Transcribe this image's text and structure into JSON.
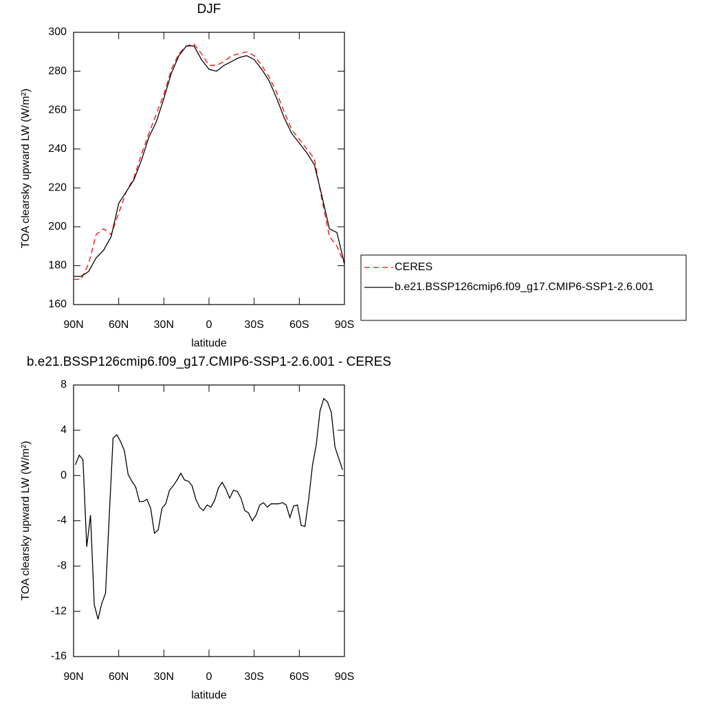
{
  "chart_data": [
    {
      "type": "line",
      "title": "DJF",
      "xlabel": "latitude",
      "ylabel": "TOA clearsky upward LW (W/m²)",
      "x": [
        90,
        85,
        80,
        75,
        70,
        65,
        60,
        55,
        50,
        45,
        40,
        35,
        30,
        25,
        20,
        15,
        10,
        5,
        0,
        -5,
        -10,
        -15,
        -20,
        -25,
        -30,
        -35,
        -40,
        -45,
        -50,
        -55,
        -60,
        -65,
        -70,
        -75,
        -80,
        -85,
        -90
      ],
      "series": [
        {
          "name": "CERES",
          "color": "#ff0000",
          "dash": "dashed",
          "values": [
            173,
            173,
            181,
            196,
            199,
            196,
            207,
            218,
            225,
            237,
            248,
            258,
            268,
            281,
            289,
            293,
            294,
            289,
            283,
            283,
            285,
            288,
            289,
            290,
            288,
            283,
            277,
            269,
            259,
            250,
            245,
            240,
            235,
            214,
            195,
            190,
            181
          ]
        },
        {
          "name": "b.e21.BSSP126cmip6.f09_g17.CMIP6-SSP1-2.6.001",
          "color": "#000000",
          "dash": "solid",
          "values": [
            174.5,
            174.5,
            177,
            184,
            188,
            195,
            212,
            218,
            224,
            234,
            246,
            254,
            266,
            279,
            288,
            293,
            293,
            286,
            281,
            280,
            283,
            285,
            287,
            288,
            286,
            281,
            275,
            266,
            256,
            248,
            243,
            238,
            232,
            216,
            199,
            197,
            181
          ]
        }
      ],
      "xlim": [
        90,
        -90
      ],
      "xticks": [
        {
          "value": 90,
          "label": "90N"
        },
        {
          "value": 60,
          "label": "60N"
        },
        {
          "value": 30,
          "label": "30N"
        },
        0,
        {
          "value": -30,
          "label": "30S"
        },
        {
          "value": -60,
          "label": "60S"
        },
        {
          "value": -90,
          "label": "90S"
        }
      ],
      "ylim": [
        160,
        300
      ],
      "yticks": [
        160,
        180,
        200,
        220,
        240,
        260,
        280,
        300
      ],
      "legend": "right"
    },
    {
      "type": "line",
      "title": "b.e21.BSSP126cmip6.f09_g17.CMIP6-SSP1-2.6.001 - CERES",
      "xlabel": "latitude",
      "ylabel": "TOA clearsky upward LW (W/m²)",
      "x": [
        88.75,
        86.25,
        83.75,
        81.25,
        78.75,
        76.25,
        73.75,
        71.25,
        68.75,
        66.25,
        63.75,
        61.25,
        58.75,
        56.25,
        53.75,
        51.25,
        48.75,
        46.25,
        43.75,
        41.25,
        38.75,
        36.25,
        33.75,
        31.25,
        28.75,
        26.25,
        23.75,
        21.25,
        18.75,
        16.25,
        13.75,
        11.25,
        8.75,
        6.25,
        3.75,
        1.25,
        -1.25,
        -3.75,
        -6.25,
        -8.75,
        -11.25,
        -13.75,
        -16.25,
        -18.75,
        -21.25,
        -23.75,
        -26.25,
        -28.75,
        -31.25,
        -33.75,
        -36.25,
        -38.75,
        -41.25,
        -43.75,
        -46.25,
        -48.75,
        -51.25,
        -53.75,
        -56.25,
        -58.75,
        -61.25,
        -63.75,
        -66.25,
        -68.75,
        -71.25,
        -73.75,
        -76.25,
        -78.75,
        -81.25,
        -83.75,
        -86.25,
        -88.75
      ],
      "color": "#000000",
      "values": [
        0.95,
        1.8,
        1.4,
        -6.3,
        -3.5,
        -11.4,
        -12.7,
        -11.3,
        -10.4,
        -3.5,
        3.3,
        3.6,
        3.0,
        2.2,
        0.1,
        -0.5,
        -1,
        -2.3,
        -2.3,
        -2.1,
        -2.9,
        -5.1,
        -4.8,
        -2.9,
        -2.5,
        -1.3,
        -0.9,
        -0.4,
        0.2,
        -0.4,
        -0.5,
        -0.9,
        -2.1,
        -2.8,
        -3.1,
        -2.6,
        -2.8,
        -2.2,
        -1.1,
        -0.6,
        -1.2,
        -2.0,
        -1.3,
        -1.4,
        -2.0,
        -3.1,
        -3.3,
        -4.0,
        -3.5,
        -2.6,
        -2.4,
        -2.8,
        -2.5,
        -2.5,
        -2.5,
        -2.4,
        -2.6,
        -3.7,
        -2.7,
        -2.6,
        -4.4,
        -4.5,
        -2.1,
        0.9,
        2.7,
        5.7,
        6.8,
        6.5,
        5.6,
        2.5,
        1.5,
        0.5
      ],
      "xlim": [
        90,
        -90
      ],
      "xticks": [
        {
          "value": 90,
          "label": "90N"
        },
        {
          "value": 60,
          "label": "60N"
        },
        {
          "value": 30,
          "label": "30N"
        },
        0,
        {
          "value": -30,
          "label": "30S"
        },
        {
          "value": -60,
          "label": "60S"
        },
        {
          "value": -90,
          "label": "90S"
        }
      ],
      "ylim": [
        -16,
        8
      ],
      "yticks": [
        -16,
        -12,
        -8,
        -4,
        0,
        4,
        8
      ]
    }
  ]
}
